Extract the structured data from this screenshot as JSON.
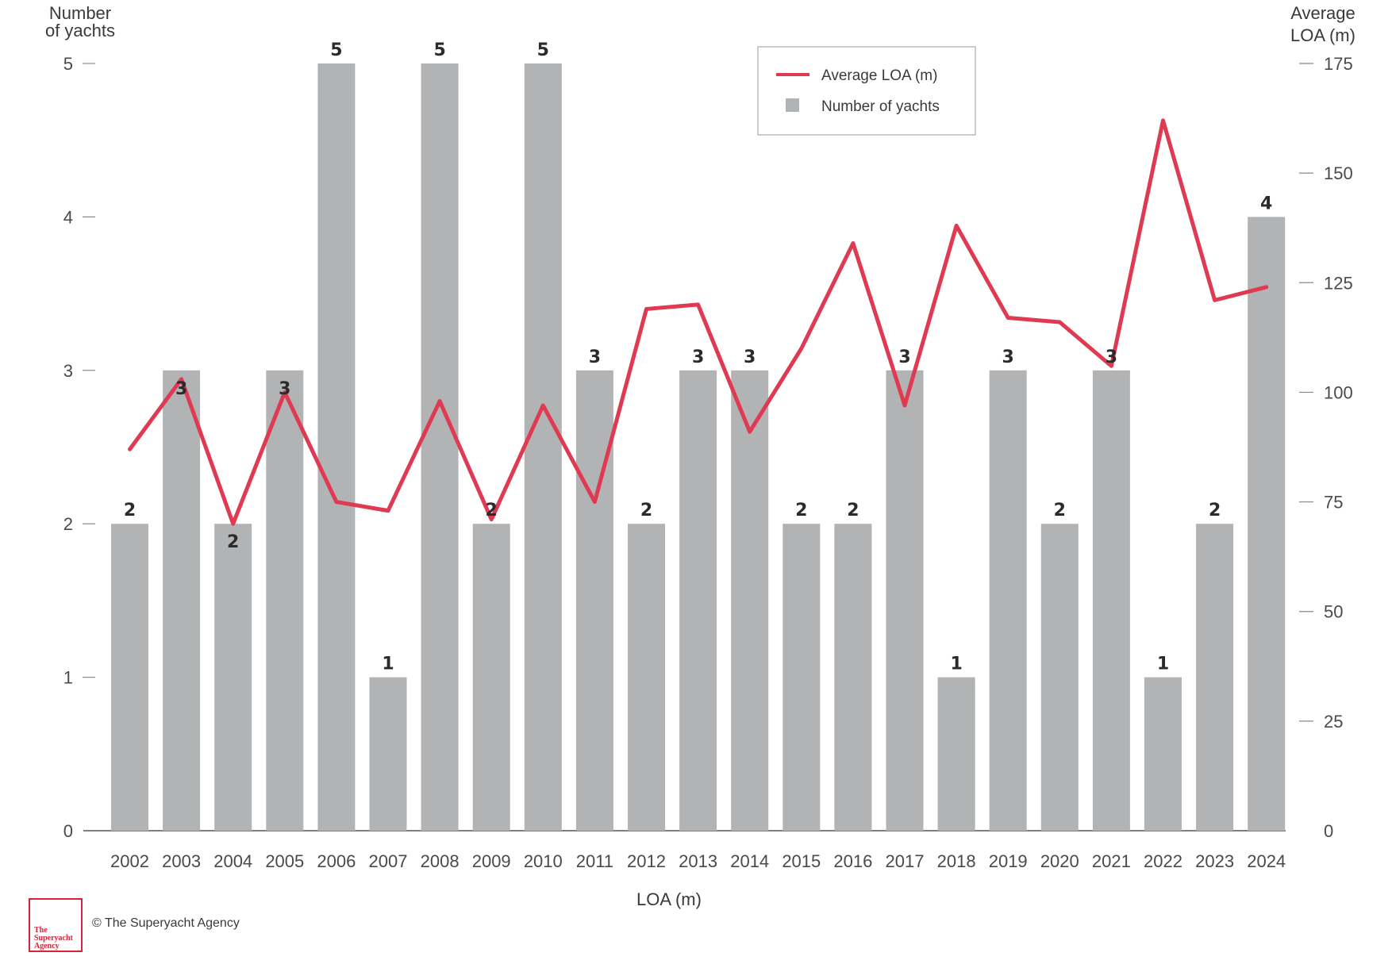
{
  "chart_data": {
    "type": "bar+line",
    "categories": [
      "2002",
      "2003",
      "2004",
      "2005",
      "2006",
      "2007",
      "2008",
      "2009",
      "2010",
      "2011",
      "2012",
      "2013",
      "2014",
      "2015",
      "2016",
      "2017",
      "2018",
      "2019",
      "2020",
      "2021",
      "2022",
      "2023",
      "2024"
    ],
    "series": [
      {
        "name": "Number of yachts",
        "type": "bar",
        "axis": "left",
        "values": [
          2,
          3,
          2,
          3,
          5,
          1,
          5,
          2,
          5,
          3,
          2,
          3,
          3,
          2,
          2,
          3,
          1,
          3,
          2,
          3,
          1,
          2,
          4
        ]
      },
      {
        "name": "Average LOA (m)",
        "type": "line",
        "axis": "right",
        "values": [
          87,
          103,
          70,
          100,
          75,
          73,
          98,
          71,
          97,
          75,
          119,
          120,
          91,
          110,
          134,
          97,
          138,
          117,
          116,
          106,
          162,
          121,
          124
        ]
      }
    ],
    "left_axis": {
      "title_line1": "Number",
      "title_line2": "of yachts",
      "ylim": [
        0,
        5
      ],
      "ticks": [
        0,
        1,
        2,
        3,
        4,
        5
      ]
    },
    "right_axis": {
      "title_line1": "Average",
      "title_line2": "LOA (m)",
      "ylim": [
        0,
        175
      ],
      "ticks": [
        0,
        25,
        50,
        75,
        100,
        125,
        150,
        175
      ]
    },
    "xlabel": "LOA (m)",
    "legend": {
      "position": "top-center",
      "entries": [
        "Average LOA (m)",
        "Number of yachts"
      ]
    },
    "colors": {
      "bar": "#b1b3b4",
      "line": "#e03a52",
      "axis": "#555555"
    },
    "grid": false
  },
  "footer": {
    "copyright": "© The Superyacht Agency",
    "logo_text": "The\nSuperyacht\nAgency"
  }
}
